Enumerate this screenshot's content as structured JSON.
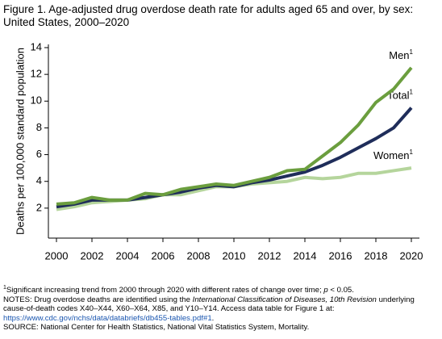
{
  "chart_data": {
    "type": "line",
    "title": "Figure 1. Age-adjusted drug overdose death rate for adults aged 65 and over, by sex:",
    "subtitle": "United States, 2000–2020",
    "y_label": "Deaths per 100,000 standard population",
    "x": [
      2000,
      2001,
      2002,
      2003,
      2004,
      2005,
      2006,
      2007,
      2008,
      2009,
      2010,
      2011,
      2012,
      2013,
      2014,
      2015,
      2016,
      2017,
      2018,
      2019,
      2020
    ],
    "series": [
      {
        "name": "Women",
        "color": "#b5d59c",
        "values": [
          1.9,
          2.1,
          2.4,
          2.5,
          2.6,
          2.7,
          3.0,
          3.0,
          3.3,
          3.6,
          3.6,
          3.8,
          3.9,
          4.0,
          4.3,
          4.2,
          4.3,
          4.6,
          4.6,
          4.8,
          5.0
        ]
      },
      {
        "name": "Total",
        "color": "#1f2d5a",
        "values": [
          2.1,
          2.3,
          2.6,
          2.6,
          2.6,
          2.8,
          3.0,
          3.2,
          3.5,
          3.7,
          3.6,
          3.9,
          4.1,
          4.4,
          4.7,
          5.2,
          5.8,
          6.5,
          7.2,
          8.0,
          9.5
        ]
      },
      {
        "name": "Men",
        "color": "#6b9e3e",
        "values": [
          2.3,
          2.4,
          2.8,
          2.6,
          2.6,
          3.1,
          3.0,
          3.4,
          3.6,
          3.8,
          3.7,
          4.0,
          4.3,
          4.8,
          4.9,
          5.9,
          6.9,
          8.2,
          9.9,
          10.9,
          12.5
        ]
      }
    ],
    "label_superscript": "1",
    "xlim": [
      2000,
      2020
    ],
    "xticks": [
      2000,
      2002,
      2004,
      2006,
      2008,
      2010,
      2012,
      2014,
      2016,
      2018,
      2020
    ],
    "ylim": [
      0,
      14
    ],
    "yticks": [
      2,
      4,
      6,
      8,
      10,
      12,
      14
    ],
    "footnote_marker": "1",
    "footnote": "Significant increasing trend from 2000 through 2020 with different rates of change over time; ",
    "footnote_p": "p",
    "footnote_end": " < 0.05.",
    "notes": [
      "NOTES: Drug overdose deaths are identified using the ",
      "International Classification of Diseases, 10th Revision",
      " underlying cause-of-death codes X40–X44, X60–X64, X85, and Y10–Y14. Access data table for Figure 1 at: ",
      "https://www.cdc.gov/nchs/data/databriefs/db455-tables.pdf#1",
      "."
    ],
    "source": "SOURCE: National Center for Health Statistics, National Vital Statistics System, Mortality."
  }
}
